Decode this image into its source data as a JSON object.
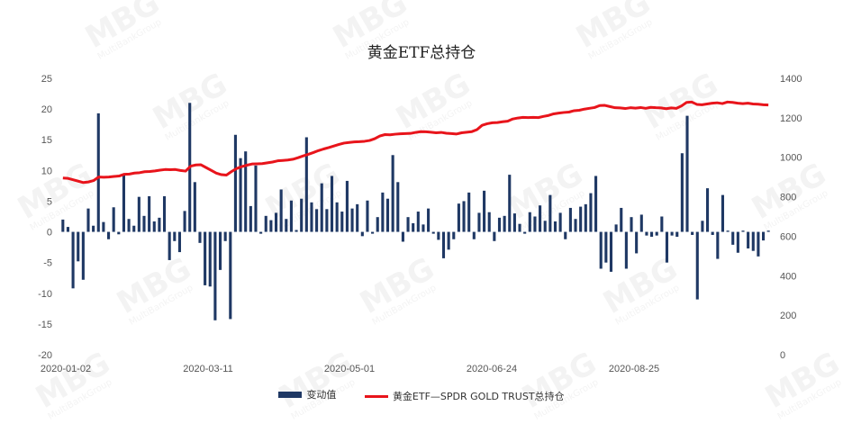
{
  "chart_data": {
    "type": "bar+line",
    "title": "黄金ETF总持仓",
    "x_tick_labels": [
      "2020-01-02",
      "2020-03-11",
      "2020-05-01",
      "2020-06-24",
      "2020-08-25"
    ],
    "y_left": {
      "ticks": [
        25,
        20,
        15,
        10,
        5,
        0,
        -5,
        -10,
        -15,
        -20
      ],
      "range": [
        -20,
        25
      ]
    },
    "y_right": {
      "ticks": [
        1400,
        1200,
        1000,
        800,
        600,
        400,
        200,
        0
      ],
      "range": [
        0,
        1400
      ]
    },
    "series": [
      {
        "name": "变动值",
        "type": "bar",
        "axis": "left",
        "color": "#1f3864",
        "values": [
          2,
          0.8,
          -9.2,
          -4.8,
          -7.8,
          3.8,
          1,
          19.3,
          1.6,
          -1.2,
          4,
          -0.4,
          9.2,
          2.1,
          1,
          5.7,
          2.6,
          5.8,
          1.7,
          2.3,
          5.8,
          -4.6,
          -1.5,
          -3.3,
          3.4,
          21,
          8.1,
          -1.8,
          -8.7,
          -8.9,
          -14.4,
          -6.2,
          -1.5,
          -14.2,
          15.8,
          12,
          13.1,
          4.2,
          10.8,
          -0.3,
          2.6,
          1.9,
          3.1,
          6.9,
          2.1,
          5.1,
          0.3,
          5.4,
          15.4,
          4.8,
          3.7,
          7.9,
          3.7,
          9.1,
          4.8,
          3.3,
          8.3,
          3.8,
          4.5,
          -0.7,
          5.1,
          -0.3,
          2.4,
          6.4,
          5.4,
          12.5,
          8.1,
          -1.6,
          2.4,
          1.4,
          3.3,
          1.2,
          3.8,
          -0.3,
          -1.3,
          -4.3,
          -2.9,
          -1.2,
          4.6,
          5,
          6.4,
          -1.2,
          3.1,
          6.7,
          3.2,
          -1.5,
          2.3,
          2.6,
          9.3,
          3,
          1.3,
          -0.3,
          3.2,
          2.5,
          4.3,
          1.8,
          6,
          1.7,
          3.1,
          -1.2,
          3.9,
          2.1,
          4.1,
          4.5,
          6.3,
          9.1,
          -6,
          -5,
          -6.5,
          1.2,
          3.9,
          -6,
          2.4,
          -3.5,
          2.8,
          -0.6,
          -0.8,
          -0.6,
          2.5,
          -5,
          -0.6,
          -0.8,
          12.8,
          18.9,
          -0.5,
          -11,
          1.8,
          7.1,
          -0.5,
          -4.4,
          6,
          0.2,
          -2.1,
          -3.4,
          0.2,
          -2.7,
          -3.1,
          -4,
          -1.4,
          0.2
        ]
      },
      {
        "name": "黄金ETF—SPDR GOLD TRUST总持仓",
        "type": "line",
        "axis": "right",
        "color": "#e8141b",
        "values": [
          895,
          893,
          886,
          879,
          872,
          875,
          882,
          900,
          899,
          900,
          903,
          905,
          914,
          915,
          920,
          922,
          927,
          928,
          931,
          935,
          938,
          937,
          938,
          933,
          930,
          955,
          961,
          962,
          948,
          934,
          920,
          912,
          910,
          928,
          943,
          953,
          960,
          966,
          967,
          968,
          972,
          976,
          982,
          984,
          986,
          990,
          998,
          1007,
          1015,
          1024,
          1034,
          1042,
          1049,
          1057,
          1065,
          1072,
          1075,
          1078,
          1079,
          1081,
          1085,
          1094,
          1108,
          1115,
          1114,
          1117,
          1119,
          1120,
          1121,
          1126,
          1130,
          1129,
          1127,
          1124,
          1126,
          1122,
          1120,
          1118,
          1124,
          1127,
          1130,
          1140,
          1162,
          1170,
          1175,
          1176,
          1180,
          1183,
          1194,
          1199,
          1202,
          1201,
          1202,
          1201,
          1207,
          1212,
          1220,
          1224,
          1227,
          1229,
          1236,
          1238,
          1244,
          1248,
          1252,
          1262,
          1263,
          1257,
          1251,
          1250,
          1247,
          1251,
          1249,
          1252,
          1248,
          1253,
          1251,
          1250,
          1246,
          1250,
          1248,
          1260,
          1278,
          1280,
          1268,
          1266,
          1270,
          1274,
          1276,
          1272,
          1280,
          1278,
          1274,
          1272,
          1274,
          1270,
          1269,
          1266,
          1265
        ]
      }
    ],
    "grid": false,
    "legend": "bottom"
  },
  "watermark": {
    "text": "MBG",
    "sub": "MultiBankGroup"
  }
}
